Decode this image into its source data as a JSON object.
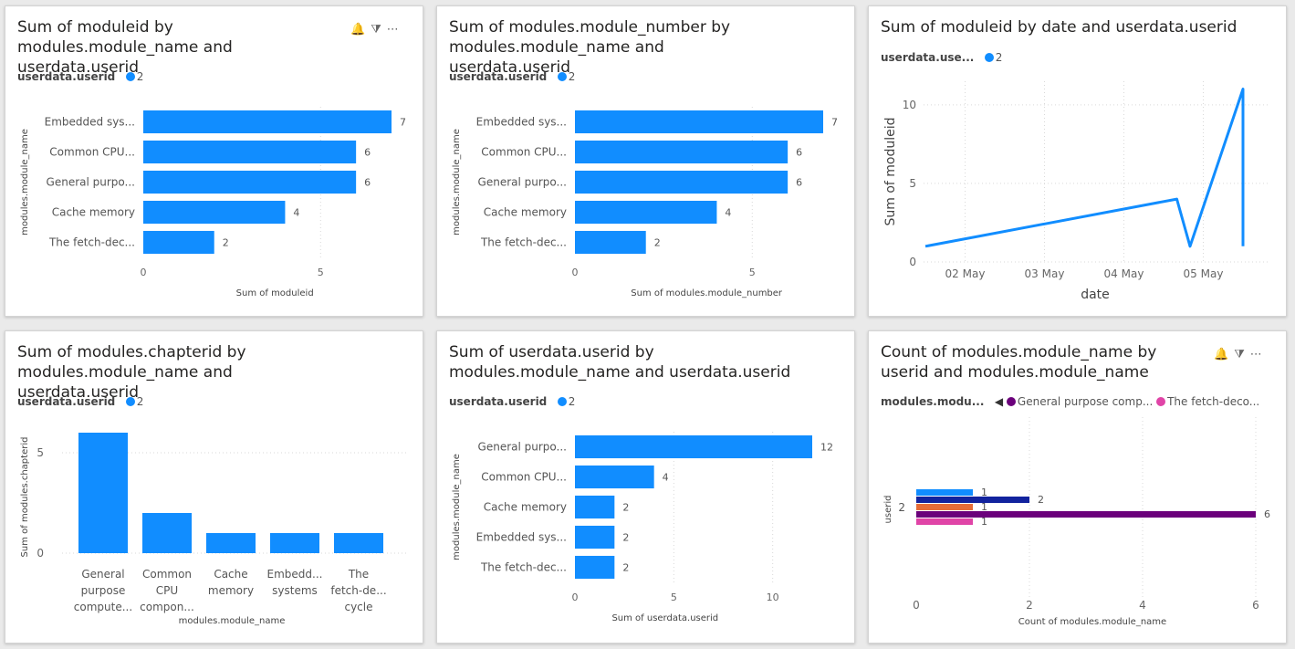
{
  "colors": {
    "primary": "#118DFF",
    "purple": "#6B007B",
    "navy": "#12239E",
    "orange": "#E66C37",
    "pink": "#E044A7"
  },
  "cards": [
    {
      "title": "Sum of moduleid by modules.module_name and userdata.userid",
      "legend_title": "userdata.userid",
      "legend_items": [
        {
          "label": "2",
          "color": "#118DFF"
        }
      ],
      "icons": [
        "bell-icon",
        "filter-icon",
        "more-icon"
      ]
    },
    {
      "title": "Sum of modules.module_number by modules.module_name and userdata.userid",
      "legend_title": "userdata.userid",
      "legend_items": [
        {
          "label": "2",
          "color": "#118DFF"
        }
      ]
    },
    {
      "title": "Sum of moduleid by date and userdata.userid",
      "legend_title": "userdata.use...",
      "legend_items": [
        {
          "label": "2",
          "color": "#118DFF"
        }
      ]
    },
    {
      "title": "Sum of modules.chapterid by modules.module_name and userdata.userid",
      "legend_title": "userdata.userid",
      "legend_items": [
        {
          "label": "2",
          "color": "#118DFF"
        }
      ]
    },
    {
      "title": "Sum of userdata.userid by modules.module_name and userdata.userid",
      "legend_title": "userdata.userid",
      "legend_items": [
        {
          "label": "2",
          "color": "#118DFF"
        }
      ]
    },
    {
      "title": "Count of modules.module_name by userid and modules.module_name",
      "legend_title": "modules.modu...",
      "legend_items": [
        {
          "label": "General purpose comp...",
          "color": "#6B007B"
        },
        {
          "label": "The fetch-deco...",
          "color": "#E044A7"
        }
      ],
      "icons": [
        "bell-icon",
        "filter-icon",
        "more-icon"
      ]
    }
  ],
  "chart_data": [
    {
      "type": "bar",
      "orientation": "horizontal",
      "categories": [
        "Embedded sys...",
        "Common CPU...",
        "General purpo...",
        "Cache memory",
        "The fetch-dec..."
      ],
      "values": [
        7,
        6,
        6,
        4,
        2
      ],
      "xlim": [
        0,
        7
      ],
      "xticks": [
        0,
        5
      ],
      "xlabel": "Sum of moduleid",
      "ylabel": "modules.module_name",
      "series": [
        {
          "name": "2",
          "values": [
            7,
            6,
            6,
            4,
            2
          ],
          "color": "#118DFF"
        }
      ]
    },
    {
      "type": "bar",
      "orientation": "horizontal",
      "categories": [
        "Embedded sys...",
        "Common CPU...",
        "General purpo...",
        "Cache memory",
        "The fetch-dec..."
      ],
      "values": [
        7,
        6,
        6,
        4,
        2
      ],
      "xlim": [
        0,
        7
      ],
      "xticks": [
        0,
        5
      ],
      "xlabel": "Sum of modules.module_number",
      "ylabel": "modules.module_name",
      "series": [
        {
          "name": "2",
          "values": [
            7,
            6,
            6,
            4,
            2
          ],
          "color": "#118DFF"
        }
      ]
    },
    {
      "type": "line",
      "xlabel": "date",
      "ylabel": "Sum of moduleid",
      "xticks": [
        "02 May",
        "03 May",
        "04 May",
        "05 May"
      ],
      "yticks": [
        0,
        5,
        10
      ],
      "ylim": [
        0,
        11.5
      ],
      "series": [
        {
          "name": "2",
          "color": "#118DFF",
          "points": [
            {
              "x": "01 May 12:00",
              "y": 1
            },
            {
              "x": "04 May 16:00",
              "y": 4
            },
            {
              "x": "04 May 20:00",
              "y": 1
            },
            {
              "x": "05 May 12:00",
              "y": 11
            },
            {
              "x": "05 May 12:00",
              "y": 1
            }
          ]
        }
      ]
    },
    {
      "type": "bar",
      "orientation": "vertical",
      "categories": [
        [
          "General",
          "purpose",
          "compute..."
        ],
        [
          "Common",
          "CPU",
          "compon..."
        ],
        [
          "Cache",
          "memory"
        ],
        [
          "Embedd...",
          "systems"
        ],
        [
          "The",
          "fetch-de...",
          "cycle"
        ]
      ],
      "values": [
        6,
        2,
        1,
        1,
        1
      ],
      "ylim": [
        0,
        6.5
      ],
      "yticks": [
        0,
        5
      ],
      "xlabel": "modules.module_name",
      "ylabel": "Sum of modules.chapterid",
      "series": [
        {
          "name": "2",
          "values": [
            6,
            2,
            1,
            1,
            1
          ],
          "color": "#118DFF"
        }
      ]
    },
    {
      "type": "bar",
      "orientation": "horizontal",
      "categories": [
        "General purpo...",
        "Common CPU...",
        "Cache memory",
        "Embedded sys...",
        "The fetch-dec..."
      ],
      "values": [
        12,
        4,
        2,
        2,
        2
      ],
      "xlim": [
        0,
        12
      ],
      "xticks": [
        0,
        5,
        10
      ],
      "xlabel": "Sum of userdata.userid",
      "ylabel": "modules.module_name",
      "series": [
        {
          "name": "2",
          "values": [
            12,
            4,
            2,
            2,
            2
          ],
          "color": "#118DFF"
        }
      ]
    },
    {
      "type": "bar",
      "orientation": "horizontal",
      "grouped": true,
      "categories": [
        "2"
      ],
      "xlim": [
        0,
        6
      ],
      "xticks": [
        0,
        2,
        4,
        6
      ],
      "xlabel": "Count of modules.module_name",
      "ylabel": "userid",
      "series": [
        {
          "values": [
            1
          ],
          "color": "#118DFF"
        },
        {
          "values": [
            2
          ],
          "color": "#12239E"
        },
        {
          "values": [
            1
          ],
          "color": "#E66C37"
        },
        {
          "name": "General purpose comp...",
          "values": [
            6
          ],
          "color": "#6B007B"
        },
        {
          "name": "The fetch-deco...",
          "values": [
            1
          ],
          "color": "#E044A7"
        }
      ]
    }
  ]
}
